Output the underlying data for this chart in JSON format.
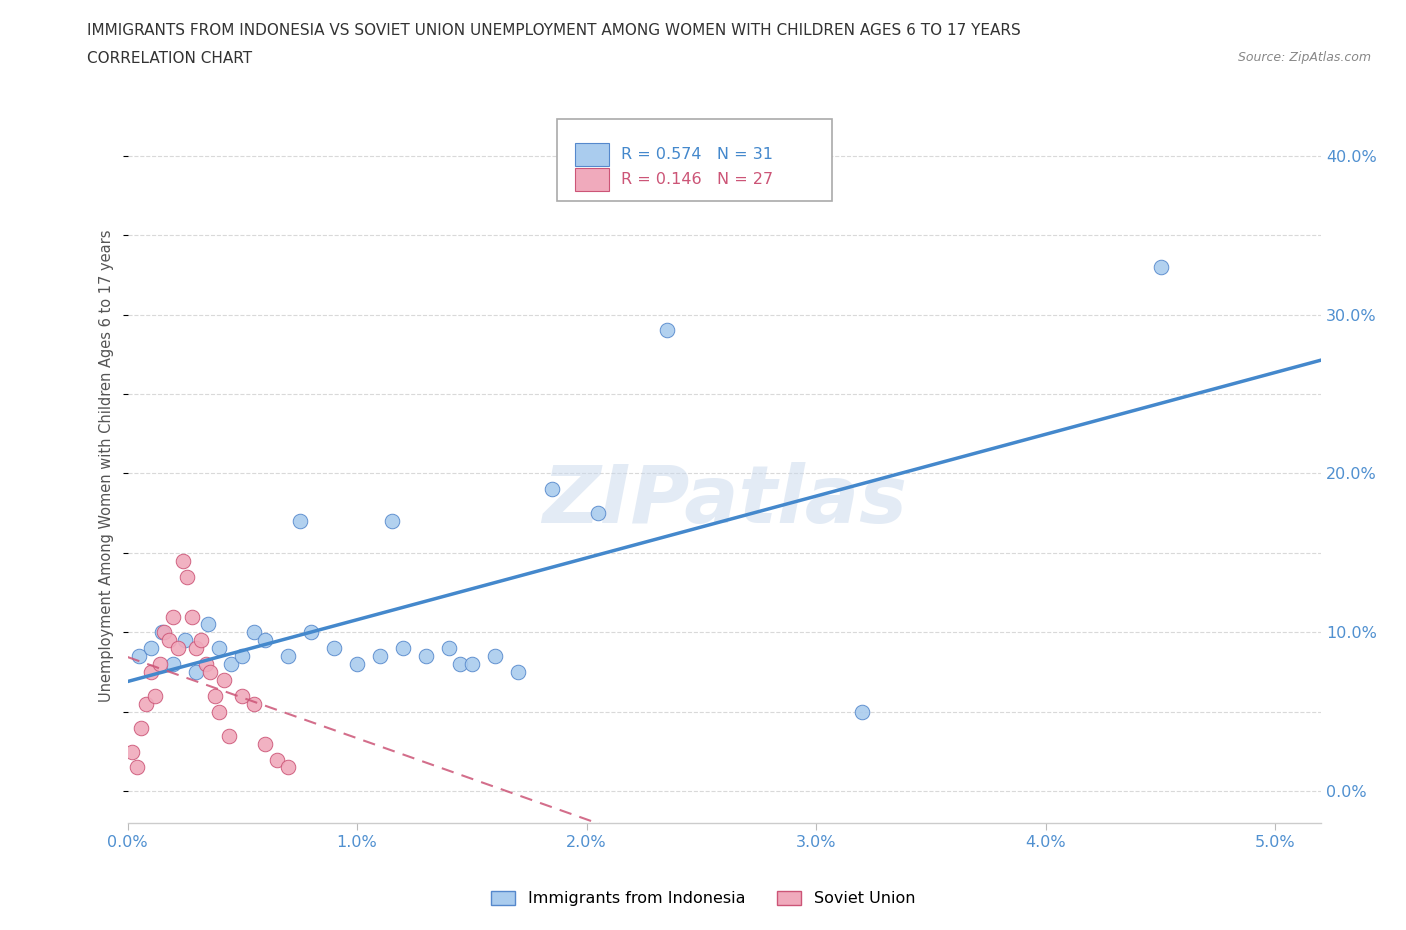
{
  "title_line1": "IMMIGRANTS FROM INDONESIA VS SOVIET UNION UNEMPLOYMENT AMONG WOMEN WITH CHILDREN AGES 6 TO 17 YEARS",
  "title_line2": "CORRELATION CHART",
  "source": "Source: ZipAtlas.com",
  "ylabel": "Unemployment Among Women with Children Ages 6 to 17 years",
  "watermark": "ZIPatlas",
  "legend_indonesia_R": 0.574,
  "legend_indonesia_N": 31,
  "legend_soviet_R": 0.146,
  "legend_soviet_N": 27,
  "x_ticks": [
    0.0,
    1.0,
    2.0,
    3.0,
    4.0,
    5.0
  ],
  "x_tick_labels": [
    "0.0%",
    "1.0%",
    "2.0%",
    "3.0%",
    "4.0%",
    "5.0%"
  ],
  "y_ticks": [
    0,
    10,
    20,
    30,
    40
  ],
  "y_tick_labels": [
    "0.0%",
    "10.0%",
    "20.0%",
    "30.0%",
    "40.0%"
  ],
  "xlim": [
    0.0,
    5.2
  ],
  "ylim": [
    -2.0,
    43.0
  ],
  "indonesia_points": [
    [
      0.05,
      8.5
    ],
    [
      0.1,
      9.0
    ],
    [
      0.15,
      10.0
    ],
    [
      0.2,
      8.0
    ],
    [
      0.25,
      9.5
    ],
    [
      0.3,
      7.5
    ],
    [
      0.35,
      10.5
    ],
    [
      0.4,
      9.0
    ],
    [
      0.45,
      8.0
    ],
    [
      0.5,
      8.5
    ],
    [
      0.55,
      10.0
    ],
    [
      0.6,
      9.5
    ],
    [
      0.7,
      8.5
    ],
    [
      0.75,
      17.0
    ],
    [
      0.8,
      10.0
    ],
    [
      0.9,
      9.0
    ],
    [
      1.0,
      8.0
    ],
    [
      1.1,
      8.5
    ],
    [
      1.15,
      17.0
    ],
    [
      1.2,
      9.0
    ],
    [
      1.3,
      8.5
    ],
    [
      1.4,
      9.0
    ],
    [
      1.45,
      8.0
    ],
    [
      1.5,
      8.0
    ],
    [
      1.6,
      8.5
    ],
    [
      1.7,
      7.5
    ],
    [
      1.85,
      19.0
    ],
    [
      2.05,
      17.5
    ],
    [
      2.35,
      29.0
    ],
    [
      3.2,
      5.0
    ],
    [
      4.5,
      33.0
    ]
  ],
  "soviet_points": [
    [
      0.02,
      2.5
    ],
    [
      0.04,
      1.5
    ],
    [
      0.06,
      4.0
    ],
    [
      0.08,
      5.5
    ],
    [
      0.1,
      7.5
    ],
    [
      0.12,
      6.0
    ],
    [
      0.14,
      8.0
    ],
    [
      0.16,
      10.0
    ],
    [
      0.18,
      9.5
    ],
    [
      0.2,
      11.0
    ],
    [
      0.22,
      9.0
    ],
    [
      0.24,
      14.5
    ],
    [
      0.26,
      13.5
    ],
    [
      0.28,
      11.0
    ],
    [
      0.3,
      9.0
    ],
    [
      0.32,
      9.5
    ],
    [
      0.34,
      8.0
    ],
    [
      0.36,
      7.5
    ],
    [
      0.38,
      6.0
    ],
    [
      0.4,
      5.0
    ],
    [
      0.42,
      7.0
    ],
    [
      0.44,
      3.5
    ],
    [
      0.5,
      6.0
    ],
    [
      0.55,
      5.5
    ],
    [
      0.6,
      3.0
    ],
    [
      0.65,
      2.0
    ],
    [
      0.7,
      1.5
    ]
  ],
  "background_color": "#ffffff",
  "grid_color": "#d0d0d0",
  "tick_color": "#5090d0",
  "ylabel_color": "#555555",
  "indonesia_fill": "#aaccee",
  "indonesia_edge": "#5588cc",
  "soviet_fill": "#f0aabc",
  "soviet_edge": "#cc5577",
  "indonesia_line_color": "#4488cc",
  "soviet_line_color": "#cc5577"
}
